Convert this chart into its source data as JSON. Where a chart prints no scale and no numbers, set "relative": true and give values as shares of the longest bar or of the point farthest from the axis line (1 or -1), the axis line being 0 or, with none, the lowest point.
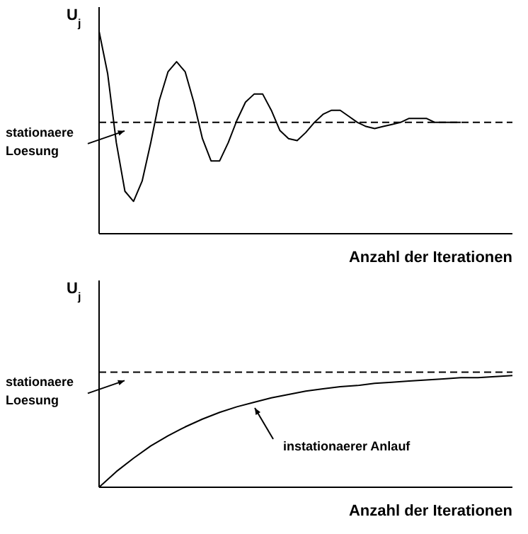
{
  "chart_data": [
    {
      "type": "line",
      "relative": true,
      "ylabel": "U$_{j}$",
      "xlabel": "Anzahl der Iterationen",
      "marker": "none",
      "categories": [
        null,
        null,
        null,
        null,
        null,
        null,
        null,
        null,
        null,
        null,
        null,
        null,
        null,
        null,
        null,
        null,
        null,
        null,
        null,
        null,
        null,
        null,
        null,
        null,
        null,
        null,
        null,
        null,
        null,
        null,
        null,
        null,
        null,
        null,
        null,
        null,
        null,
        null,
        null,
        null,
        null,
        null,
        null,
        null,
        null,
        null,
        null,
        null,
        null
      ],
      "series": [
        {
          "color": "#000000",
          "values": [
            1,
            0.79,
            0.45,
            0.21,
            0.16,
            0.26,
            0.45,
            0.66,
            0.8,
            0.85,
            0.8,
            0.65,
            0.47,
            0.36,
            0.36,
            0.45,
            0.56,
            0.65,
            0.69,
            0.69,
            0.61,
            0.51,
            0.47,
            0.46,
            0.5,
            0.55,
            0.59,
            0.61,
            0.61,
            0.58,
            0.55,
            0.53,
            0.52,
            0.53,
            0.54,
            0.55,
            0.57,
            0.57,
            0.57,
            0.55,
            0.55,
            0.55,
            0.55,
            null,
            null,
            null,
            null,
            null,
            null
          ]
        }
      ],
      "ref_lines": [
        {
          "axis": "y",
          "value": 0.55,
          "label": "stationaere Loesung",
          "color": "#000000",
          "line_style": "dashed"
        }
      ]
    },
    {
      "type": "line",
      "relative": true,
      "ylabel": "U$_{j}$",
      "xlabel": "Anzahl der Iterationen",
      "marker": "none",
      "categories": [
        null,
        null,
        null,
        null,
        null,
        null,
        null,
        null,
        null,
        null,
        null,
        null,
        null,
        null,
        null,
        null,
        null,
        null,
        null,
        null,
        null,
        null,
        null,
        null,
        null
      ],
      "series": [
        {
          "color": "#000000",
          "values": [
            0,
            0.14,
            0.26,
            0.37,
            0.46,
            0.54,
            0.61,
            0.67,
            0.72,
            0.76,
            0.8,
            0.83,
            0.86,
            0.88,
            0.9,
            0.91,
            0.93,
            0.94,
            0.95,
            0.96,
            0.97,
            0.98,
            0.98,
            0.99,
            1
          ]
        }
      ],
      "ref_lines": [
        {
          "axis": "y",
          "value": 1.03,
          "label": "stationaere Loesung",
          "color": "#000000",
          "line_style": "dashed"
        }
      ],
      "annotations": [
        "instationaerer Anlauf"
      ]
    }
  ]
}
